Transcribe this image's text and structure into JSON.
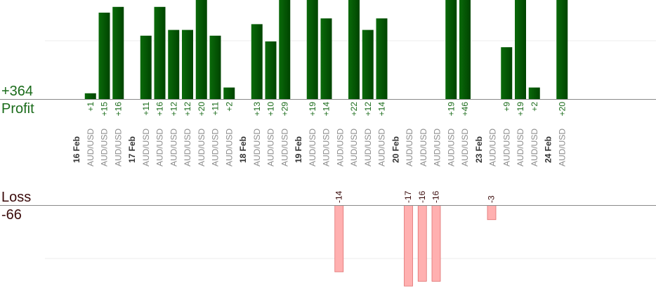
{
  "summary": {
    "profit_total": "+364",
    "profit_label": "Profit",
    "loss_label": "Loss",
    "loss_total": "-66"
  },
  "colors": {
    "profit_bar": "#0a6a0a",
    "profit_bar_dark": "#004400",
    "profit_text": "#1a6b1a",
    "loss_bar": "#ffb0b0",
    "loss_bar_border": "#e07070",
    "loss_text": "#3a0a0a",
    "axis": "#8a8a8a",
    "grid": "#eeeeee",
    "date_text": "#333333",
    "pair_text": "#8c8c8c"
  },
  "chart_data": {
    "type": "bar",
    "y_profit_range": [
      0,
      30
    ],
    "y_loss_range": [
      -17,
      0
    ],
    "days": [
      {
        "date": "16 Feb",
        "trades": [
          {
            "pair": "AUD/USD",
            "label": "+1",
            "value": 1
          },
          {
            "pair": "AUD/USD",
            "label": "+15",
            "value": 15
          },
          {
            "pair": "AUD/USD",
            "label": "+16",
            "value": 16
          }
        ]
      },
      {
        "date": "17 Feb",
        "trades": [
          {
            "pair": "AUD/USD",
            "label": "+11",
            "value": 11
          },
          {
            "pair": "AUD/USD",
            "label": "+16",
            "value": 16
          },
          {
            "pair": "AUD/USD",
            "label": "+12",
            "value": 12
          },
          {
            "pair": "AUD/USD",
            "label": "+12",
            "value": 12
          },
          {
            "pair": "AUD/USD",
            "label": "+20",
            "value": 20
          },
          {
            "pair": "AUD/USD",
            "label": "+11",
            "value": 11
          },
          {
            "pair": "AUD/USD",
            "label": "+2",
            "value": 2
          }
        ]
      },
      {
        "date": "18 Feb",
        "trades": [
          {
            "pair": "AUD/USD",
            "label": "+13",
            "value": 13
          },
          {
            "pair": "AUD/USD",
            "label": "+10",
            "value": 10
          },
          {
            "pair": "AUD/USD",
            "label": "+29",
            "value": 29
          }
        ]
      },
      {
        "date": "19 Feb",
        "trades": [
          {
            "pair": "AUD/USD",
            "label": "+19",
            "value": 19
          },
          {
            "pair": "AUD/USD",
            "label": "+14",
            "value": 14
          },
          {
            "pair": "AUD/USD",
            "label": "-14",
            "value": -14
          },
          {
            "pair": "AUD/USD",
            "label": "+22",
            "value": 22
          },
          {
            "pair": "AUD/USD",
            "label": "+12",
            "value": 12
          },
          {
            "pair": "AUD/USD",
            "label": "+14",
            "value": 14
          }
        ]
      },
      {
        "date": "20 Feb",
        "trades": [
          {
            "pair": "AUD/USD",
            "label": "-17",
            "value": -17
          },
          {
            "pair": "AUD/USD",
            "label": "-16",
            "value": -16
          },
          {
            "pair": "AUD/USD",
            "label": "-16",
            "value": -16
          },
          {
            "pair": "AUD/USD",
            "label": "+19",
            "value": 19
          },
          {
            "pair": "AUD/USD",
            "label": "+46",
            "value": 46
          }
        ]
      },
      {
        "date": "23 Feb",
        "trades": [
          {
            "pair": "AUD/USD",
            "label": "-3",
            "value": -3
          },
          {
            "pair": "AUD/USD",
            "label": "+9",
            "value": 9
          },
          {
            "pair": "AUD/USD",
            "label": "+19",
            "value": 19
          },
          {
            "pair": "AUD/USD",
            "label": "+2",
            "value": 2
          }
        ]
      },
      {
        "date": "24 Feb",
        "trades": [
          {
            "pair": "AUD/USD",
            "label": "+20",
            "value": 20
          }
        ]
      }
    ]
  }
}
